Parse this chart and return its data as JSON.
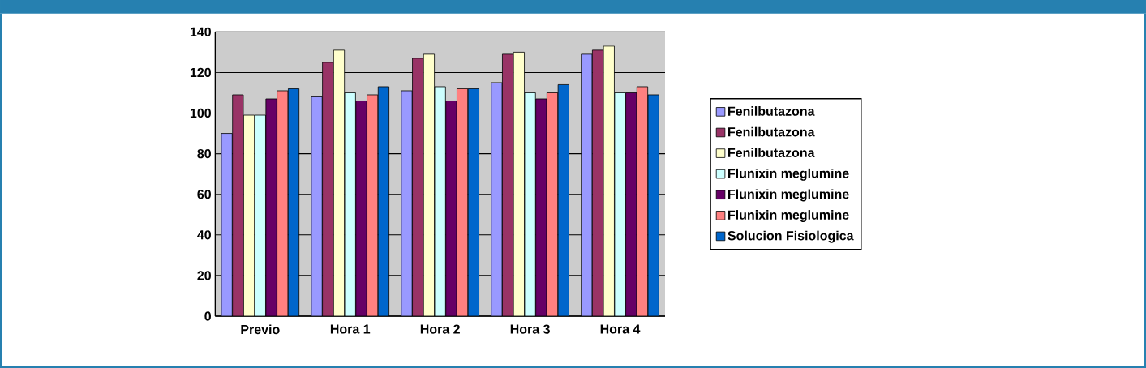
{
  "chart_data": {
    "type": "bar",
    "categories": [
      "Previo",
      "Hora 1",
      "Hora 2",
      "Hora 3",
      "Hora 4"
    ],
    "series": [
      {
        "name": "Fenilbutazona",
        "color": "#9999ff",
        "values": [
          90,
          108,
          111,
          115,
          129
        ]
      },
      {
        "name": "Fenilbutazona",
        "color": "#993366",
        "values": [
          109,
          125,
          127,
          129,
          131
        ]
      },
      {
        "name": "Fenilbutazona",
        "color": "#ffffcc",
        "values": [
          99,
          131,
          129,
          130,
          133
        ]
      },
      {
        "name": "Flunixin meglumine",
        "color": "#ccffff",
        "values": [
          99,
          110,
          113,
          110,
          110
        ]
      },
      {
        "name": "Flunixin meglumine",
        "color": "#660066",
        "values": [
          107,
          106,
          106,
          107,
          110
        ]
      },
      {
        "name": "Flunixin meglumine",
        "color": "#ff8080",
        "values": [
          111,
          109,
          112,
          110,
          113
        ]
      },
      {
        "name": "Solucion Fisiologica",
        "color": "#0066cc",
        "values": [
          112,
          113,
          112,
          114,
          109
        ]
      }
    ],
    "ylim": [
      0,
      140
    ],
    "yticks": [
      0,
      20,
      40,
      60,
      80,
      100,
      120,
      140
    ],
    "grid": "y",
    "legend": "right"
  }
}
